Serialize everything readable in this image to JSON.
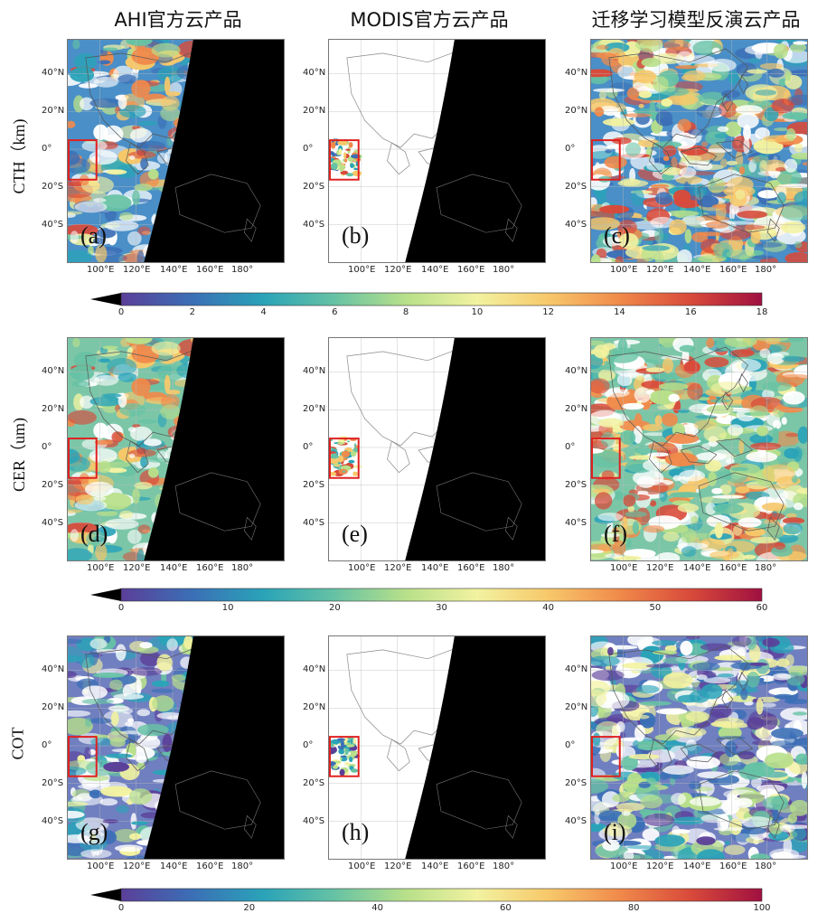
{
  "columns": [
    "AHI官方云产品",
    "MODIS官方云产品",
    "迁移学习模型反演云产品"
  ],
  "rows": [
    {
      "label": "CTH（km)",
      "panels": [
        "(a)",
        "(b)",
        "(c)"
      ],
      "colorbar": {
        "ticks": [
          "0",
          "2",
          "4",
          "6",
          "8",
          "10",
          "12",
          "14",
          "16",
          "18"
        ],
        "min": 0,
        "max": 18
      }
    },
    {
      "label": "CER（um)",
      "panels": [
        "(d)",
        "(e)",
        "(f)"
      ],
      "colorbar": {
        "ticks": [
          "0",
          "10",
          "20",
          "30",
          "40",
          "50",
          "60"
        ],
        "min": 0,
        "max": 60
      }
    },
    {
      "label": "COT",
      "panels": [
        "(g)",
        "(h)",
        "(i)"
      ],
      "colorbar": {
        "ticks": [
          "0",
          "20",
          "40",
          "60",
          "80",
          "100"
        ],
        "min": 0,
        "max": 100
      }
    }
  ],
  "lat_ticks": [
    "40°N",
    "20°N",
    "0°",
    "20°S",
    "40°S"
  ],
  "lon_ticks": [
    "100°E",
    "120°E",
    "140°E",
    "160°E",
    "180°"
  ],
  "colormap": [
    "#5b3f99",
    "#3b6fb6",
    "#2aa3b8",
    "#66c2a4",
    "#b8e08a",
    "#f2f2a0",
    "#f7c86a",
    "#f08a4b",
    "#d84a3a",
    "#a01040"
  ],
  "highlight_box_color": "#e02020",
  "night_color": "#000000"
}
